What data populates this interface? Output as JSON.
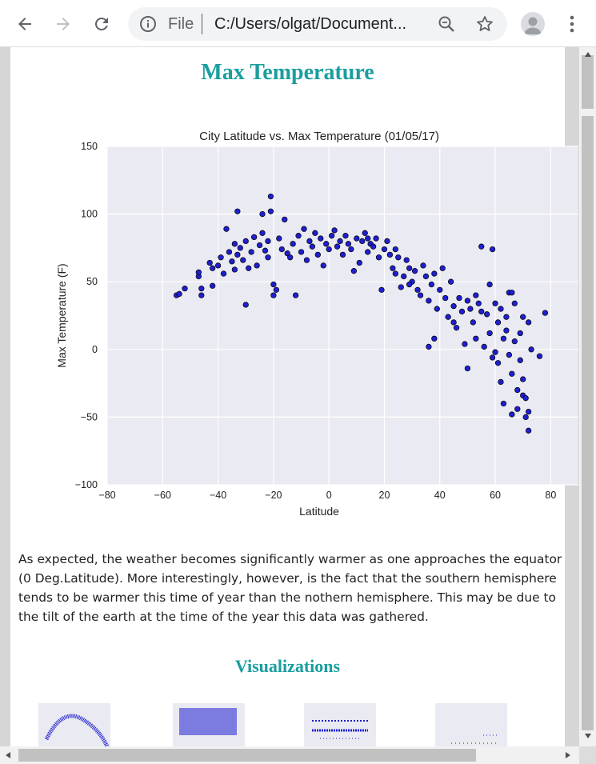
{
  "browser": {
    "scheme_label": "File",
    "url": "C:/Users/olgat/Document..."
  },
  "page": {
    "title": "Max Temperature",
    "description": "As expected, the weather becomes significantly warmer as one approaches the equator (0 Deg.Latitude). More interestingly, however, is the fact that the southern hemisphere tends to be warmer this time of year than the nothern hemisphere. This may be due to the tilt of the earth at the time of the year this data was gathered.",
    "visualizations_title": "Visualizations"
  },
  "colors": {
    "accent": "#1a9e9e",
    "point_fill": "#1f1fd1",
    "plot_bg": "#eaeaf2"
  },
  "chart_data": {
    "type": "scatter",
    "title": "City Latitude vs. Max Temperature (01/05/17)",
    "xlabel": "Latitude",
    "ylabel": "Max Temperature (F)",
    "xlim": [
      -80,
      90
    ],
    "ylim": [
      -100,
      150
    ],
    "xticks": [
      -80,
      -60,
      -40,
      -20,
      0,
      20,
      40,
      60,
      80
    ],
    "yticks": [
      -100,
      -50,
      0,
      50,
      100,
      150
    ],
    "grid": true,
    "points": [
      [
        -55,
        40
      ],
      [
        -54,
        41
      ],
      [
        -52,
        45
      ],
      [
        -47,
        54
      ],
      [
        -47,
        57
      ],
      [
        -46,
        40
      ],
      [
        -46,
        45
      ],
      [
        -43,
        64
      ],
      [
        -42,
        47
      ],
      [
        -42,
        60
      ],
      [
        -40,
        62
      ],
      [
        -39,
        68
      ],
      [
        -38,
        56
      ],
      [
        -37,
        89
      ],
      [
        -36,
        72
      ],
      [
        -35,
        65
      ],
      [
        -34,
        78
      ],
      [
        -34,
        59
      ],
      [
        -33,
        102
      ],
      [
        -33,
        70
      ],
      [
        -32,
        75
      ],
      [
        -31,
        66
      ],
      [
        -30,
        33
      ],
      [
        -30,
        80
      ],
      [
        -29,
        60
      ],
      [
        -28,
        72
      ],
      [
        -27,
        83
      ],
      [
        -26,
        62
      ],
      [
        -25,
        77
      ],
      [
        -24,
        86
      ],
      [
        -24,
        100
      ],
      [
        -23,
        73
      ],
      [
        -22,
        80
      ],
      [
        -22,
        68
      ],
      [
        -21,
        113
      ],
      [
        -21,
        102
      ],
      [
        -20,
        48
      ],
      [
        -20,
        40
      ],
      [
        -19,
        44
      ],
      [
        -18,
        82
      ],
      [
        -17,
        74
      ],
      [
        -16,
        96
      ],
      [
        -15,
        71
      ],
      [
        -14,
        68
      ],
      [
        -13,
        78
      ],
      [
        -12,
        40
      ],
      [
        -11,
        84
      ],
      [
        -10,
        72
      ],
      [
        -9,
        89
      ],
      [
        -8,
        66
      ],
      [
        -7,
        80
      ],
      [
        -6,
        76
      ],
      [
        -5,
        86
      ],
      [
        -4,
        70
      ],
      [
        -3,
        82
      ],
      [
        -2,
        62
      ],
      [
        -1,
        78
      ],
      [
        0,
        74
      ],
      [
        1,
        84
      ],
      [
        2,
        88
      ],
      [
        3,
        76
      ],
      [
        4,
        80
      ],
      [
        5,
        70
      ],
      [
        6,
        84
      ],
      [
        7,
        78
      ],
      [
        8,
        74
      ],
      [
        9,
        58
      ],
      [
        10,
        82
      ],
      [
        11,
        64
      ],
      [
        12,
        80
      ],
      [
        13,
        86
      ],
      [
        14,
        72
      ],
      [
        15,
        78
      ],
      [
        16,
        76
      ],
      [
        17,
        82
      ],
      [
        18,
        68
      ],
      [
        19,
        44
      ],
      [
        20,
        74
      ],
      [
        21,
        80
      ],
      [
        22,
        70
      ],
      [
        23,
        60
      ],
      [
        24,
        74
      ],
      [
        25,
        68
      ],
      [
        26,
        46
      ],
      [
        27,
        54
      ],
      [
        28,
        66
      ],
      [
        29,
        60
      ],
      [
        30,
        50
      ],
      [
        31,
        58
      ],
      [
        32,
        44
      ],
      [
        33,
        40
      ],
      [
        34,
        62
      ],
      [
        35,
        54
      ],
      [
        36,
        2
      ],
      [
        36,
        36
      ],
      [
        37,
        48
      ],
      [
        38,
        56
      ],
      [
        39,
        30
      ],
      [
        40,
        44
      ],
      [
        41,
        60
      ],
      [
        42,
        38
      ],
      [
        43,
        24
      ],
      [
        44,
        50
      ],
      [
        45,
        32
      ],
      [
        46,
        16
      ],
      [
        47,
        38
      ],
      [
        48,
        28
      ],
      [
        49,
        4
      ],
      [
        50,
        36
      ],
      [
        50,
        -14
      ],
      [
        51,
        30
      ],
      [
        52,
        20
      ],
      [
        53,
        8
      ],
      [
        54,
        34
      ],
      [
        55,
        28
      ],
      [
        55,
        76
      ],
      [
        56,
        2
      ],
      [
        57,
        26
      ],
      [
        58,
        12
      ],
      [
        58,
        48
      ],
      [
        59,
        -6
      ],
      [
        59,
        74
      ],
      [
        60,
        34
      ],
      [
        60,
        -2
      ],
      [
        61,
        20
      ],
      [
        61,
        -10
      ],
      [
        62,
        -24
      ],
      [
        62,
        30
      ],
      [
        63,
        8
      ],
      [
        63,
        -40
      ],
      [
        64,
        14
      ],
      [
        64,
        24
      ],
      [
        65,
        -4
      ],
      [
        65,
        42
      ],
      [
        66,
        -18
      ],
      [
        66,
        -48
      ],
      [
        67,
        6
      ],
      [
        67,
        34
      ],
      [
        68,
        -44
      ],
      [
        68,
        -30
      ],
      [
        69,
        12
      ],
      [
        69,
        -8
      ],
      [
        70,
        -22
      ],
      [
        70,
        24
      ],
      [
        70,
        -34
      ],
      [
        71,
        -50
      ],
      [
        71,
        -36
      ],
      [
        72,
        -46
      ],
      [
        72,
        -60
      ],
      [
        72,
        20
      ],
      [
        73,
        0
      ],
      [
        76,
        -5
      ],
      [
        78,
        27
      ],
      [
        66,
        42
      ],
      [
        53,
        40
      ],
      [
        45,
        20
      ],
      [
        38,
        8
      ],
      [
        29,
        48
      ],
      [
        24,
        56
      ],
      [
        14,
        82
      ]
    ]
  }
}
